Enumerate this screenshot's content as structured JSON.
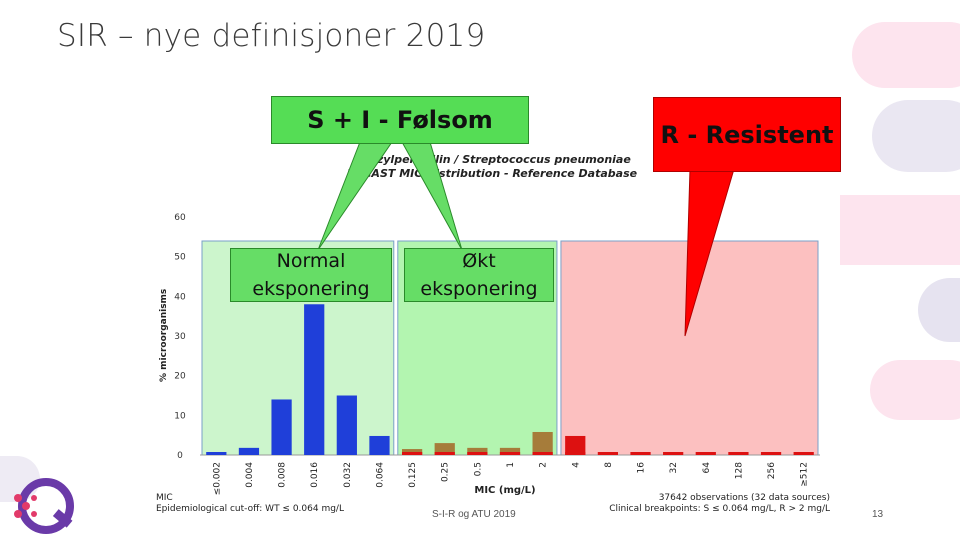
{
  "slide": {
    "title": "SIR – nye definisjoner 2019",
    "footer": "S-I-R og ATU 2019",
    "page_number": "13"
  },
  "callouts": {
    "s_i": "S + I - Følsom",
    "resistant": "R - Resistent",
    "normal_line1": "Normal",
    "normal_line2": "eksponering",
    "okt_line1": "Økt",
    "okt_line2": "eksponering"
  },
  "chart_data": {
    "type": "bar",
    "title": "Benzylpenicillin / Streptococcus pneumoniae",
    "subtitle": "EUCAST MIC Distribution - Reference Database",
    "ylabel": "% microorganisms",
    "xlabel": "MIC (mg/L)",
    "ylim": [
      0,
      60
    ],
    "yticks": [
      "0",
      "10",
      "20",
      "30",
      "40",
      "50",
      "60"
    ],
    "categories": [
      "≤0.002",
      "0.004",
      "0.008",
      "0.016",
      "0.032",
      "0.064",
      "0.125",
      "0.25",
      "0.5",
      "1",
      "2",
      "4",
      "8",
      "16",
      "32",
      "64",
      "128",
      "256",
      "≥512"
    ],
    "values": [
      0,
      1.8,
      14,
      38,
      15,
      4.8,
      1.5,
      3,
      1.8,
      1.8,
      5.8,
      4.8,
      0,
      0,
      0,
      0,
      0,
      0,
      0
    ],
    "bar_colors": [
      "#1f3fd9",
      "#1f3fd9",
      "#1f3fd9",
      "#1f3fd9",
      "#1f3fd9",
      "#1f3fd9",
      "#a67c3a",
      "#a67c3a",
      "#a67c3a",
      "#a67c3a",
      "#a67c3a",
      "#dd1111",
      "#dd1111",
      "#dd1111",
      "#dd1111",
      "#dd1111",
      "#dd1111",
      "#dd1111",
      "#dd1111"
    ],
    "zones": [
      {
        "name": "S",
        "from_index": 0,
        "to_index": 5,
        "color": "#ccf5cc"
      },
      {
        "name": "I",
        "from_index": 6,
        "to_index": 10,
        "color": "#b3f5b0"
      },
      {
        "name": "R",
        "from_index": 11,
        "to_index": 18,
        "color": "#fcc0c0"
      }
    ],
    "observations": "37642 observations (32 data sources)",
    "ecoff": "Epidemiological cut-off: WT ≤ 0.064 mg/L",
    "breakpoints": "Clinical breakpoints: S ≤ 0.064 mg/L, R > 2 mg/L",
    "mic_label": "MIC"
  }
}
